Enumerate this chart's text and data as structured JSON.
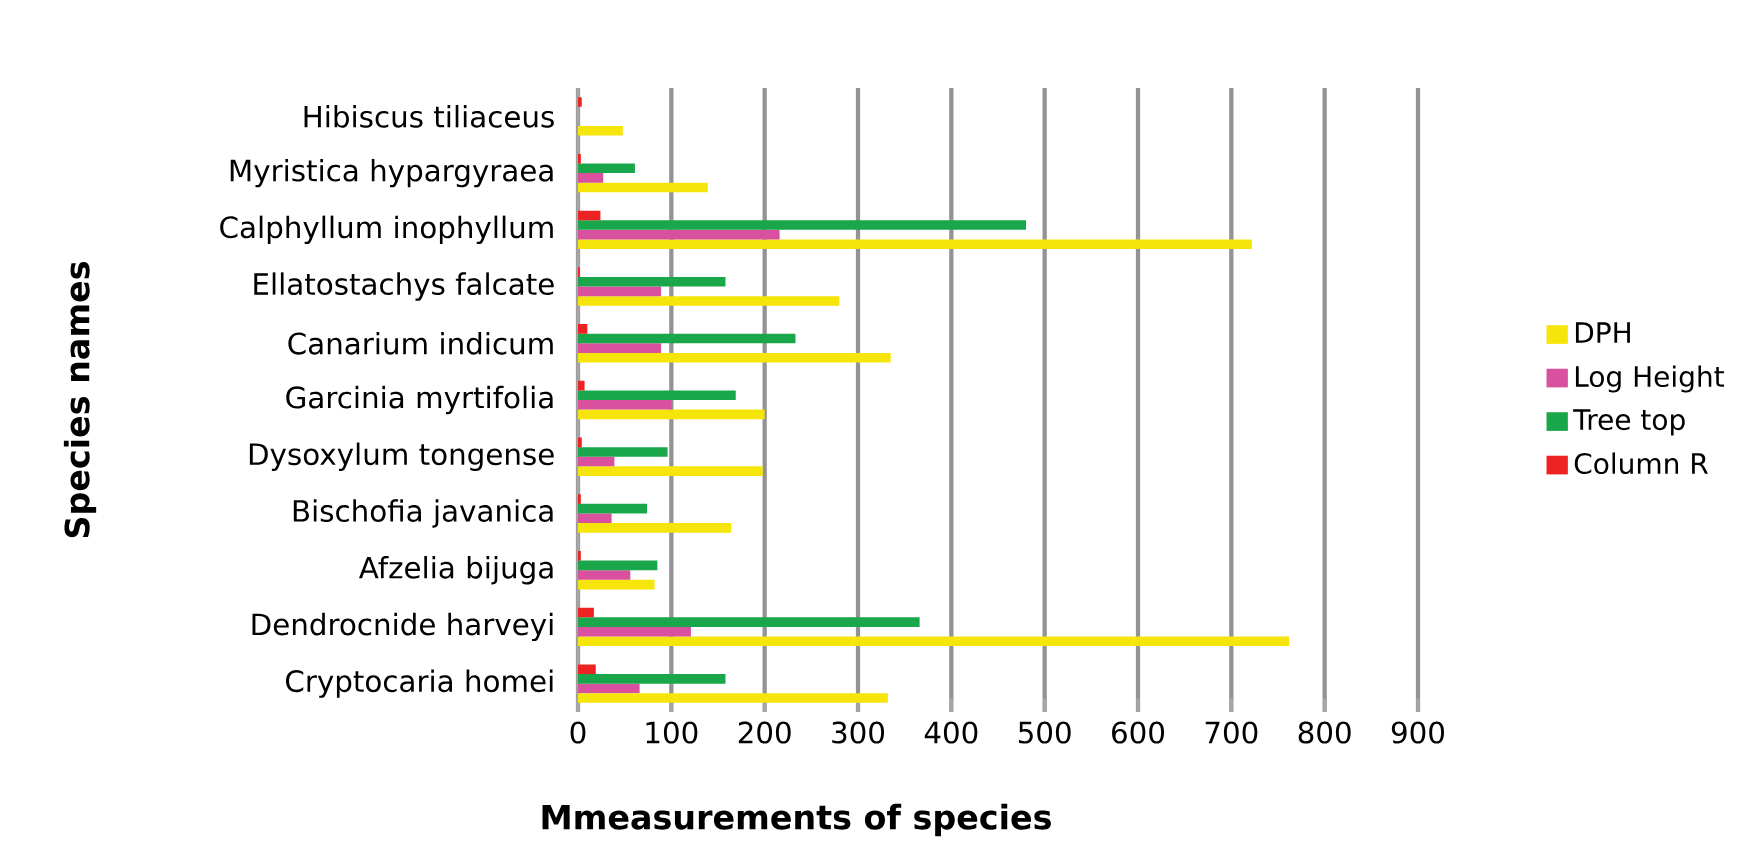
{
  "chart_data": {
    "type": "bar",
    "orientation": "horizontal",
    "xlabel": "Mmeasurements of species",
    "ylabel": "Species names",
    "categories": [
      "Hibiscus tiliaceus",
      "Myristica hypargyraea",
      "Calphyllum inophyllum",
      "Ellatostachys falcate",
      "Canarium indicum",
      "Garcinia myrtifolia",
      "Dysoxylum tongense",
      "Bischofia javanica",
      "Afzelia bijuga",
      "Dendrocnide harveyi",
      "Cryptocaria homei"
    ],
    "series": [
      {
        "name": "DPH",
        "color": "#f5e50a",
        "values": [
          48,
          139,
          722,
          280,
          335,
          200,
          198,
          164,
          82,
          762,
          332
        ]
      },
      {
        "name": "Log Height",
        "color": "#d9509f",
        "values": [
          0,
          27,
          216,
          89,
          89,
          100,
          39,
          36,
          56,
          121,
          66
        ]
      },
      {
        "name": "Tree top",
        "color": "#1aa64a",
        "values": [
          0,
          61,
          480,
          158,
          233,
          169,
          96,
          74,
          85,
          366,
          158
        ]
      },
      {
        "name": "Column R",
        "color": "#ee2222",
        "values": [
          4,
          3,
          24,
          2,
          10,
          7,
          4,
          3,
          3,
          17,
          19
        ]
      }
    ],
    "xlim": [
      0,
      900
    ],
    "xticks": [
      0,
      100,
      200,
      300,
      400,
      500,
      600,
      700,
      800,
      900
    ],
    "grid": "x",
    "legend": "right"
  }
}
